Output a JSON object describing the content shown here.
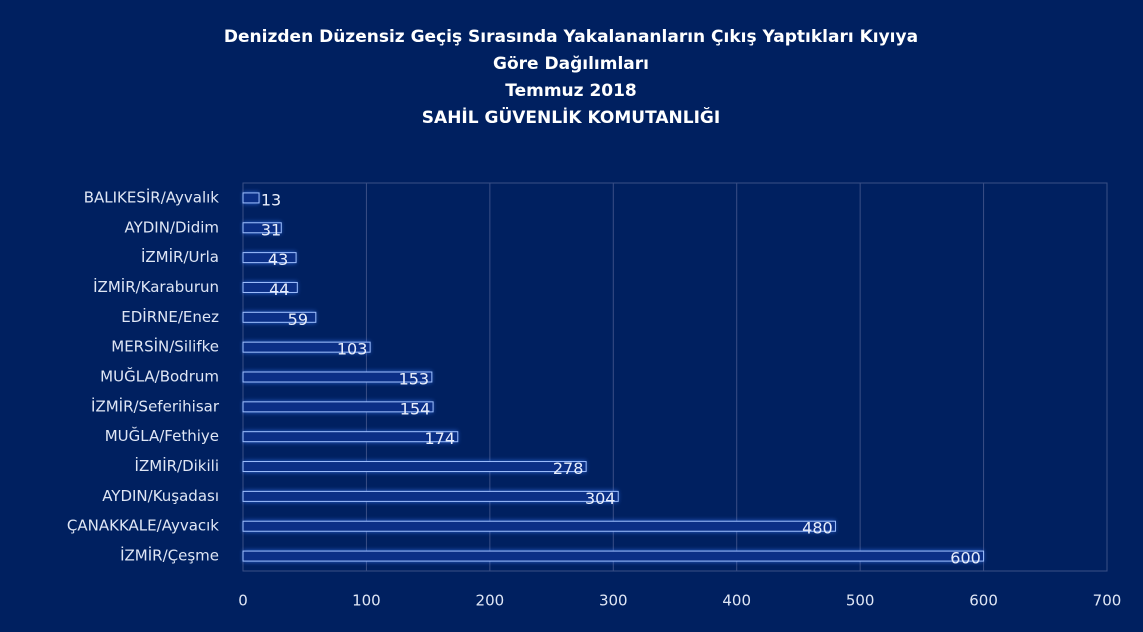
{
  "chart_data": {
    "type": "bar",
    "orientation": "horizontal",
    "title": "Denizden Düzensiz Geçiş Sırasında Yakalananların Çıkış Yaptıkları Kıyıya Göre Dağılımları",
    "subtitle": [
      "Temmuz 2018",
      "SAHİL GÜVENLİK KOMUTANLIĞI"
    ],
    "categories": [
      "BALIKESİR/Ayvalık",
      "AYDIN/Didim",
      "İZMİR/Urla",
      "İZMİR/Karaburun",
      "EDİRNE/Enez",
      "MERSİN/Silifke",
      "MUĞLA/Bodrum",
      "İZMİR/Seferihisar",
      "MUĞLA/Fethiye",
      "İZMİR/Dikili",
      "AYDIN/Kuşadası",
      "ÇANAKKALE/Ayvacık",
      "İZMİR/Çeşme"
    ],
    "values": [
      13,
      31,
      43,
      44,
      59,
      103,
      153,
      154,
      174,
      278,
      304,
      480,
      600
    ],
    "color": "#0b2f86",
    "xlim": [
      0,
      700
    ],
    "xticks": [
      0,
      100,
      200,
      300,
      400,
      500,
      600,
      700
    ],
    "grid": true
  }
}
